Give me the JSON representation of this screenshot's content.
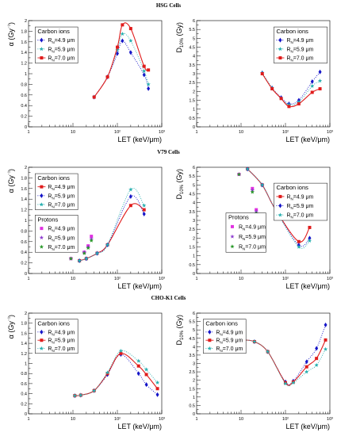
{
  "row_titles": [
    "HSG Cells",
    "V79 Cells",
    "CHO-K1 Cells"
  ],
  "colors": {
    "r49": "#1515c8",
    "r59": "#2ab0b0",
    "r70": "#e01c1c",
    "p49": "#e030e0",
    "p59": "#9040d0",
    "p70": "#2a9a2a"
  },
  "chart_data": [
    {
      "type": "scatter",
      "row": "HSG Cells",
      "panel": "left",
      "ykind": "alpha",
      "xlabel": "LET (keV/μm)",
      "ylabel": "α (Gy⁻¹)",
      "xscale": "log",
      "xlim": [
        1,
        1000
      ],
      "ylim": [
        0,
        2
      ],
      "xticks": [
        "1",
        "10",
        "10²",
        "10³"
      ],
      "yticks": [
        "0",
        "0.2",
        "0.4",
        "0.6",
        "0.8",
        "1",
        "1.2",
        "1.4",
        "1.6",
        "1.8",
        "2"
      ],
      "legend_title": "Carbon ions",
      "legend_position": "top-left",
      "legend_box": [
        0.05,
        0.6,
        0.37,
        0.94
      ],
      "series": [
        {
          "name": "4.9 μm",
          "group": "carbon",
          "key": "r49",
          "marker": "diamond",
          "line": "dotted",
          "x": [
            30,
            60,
            100,
            130,
            200,
            400,
            500
          ],
          "y": [
            0.56,
            0.94,
            1.38,
            1.62,
            1.4,
            0.98,
            0.72
          ]
        },
        {
          "name": "5.9 μm",
          "group": "carbon",
          "key": "r59",
          "marker": "star",
          "line": "dotted",
          "x": [
            30,
            60,
            100,
            130,
            200,
            400,
            500
          ],
          "y": [
            0.56,
            0.94,
            1.45,
            1.75,
            1.62,
            1.05,
            0.8
          ]
        },
        {
          "name": "7.0 μm",
          "group": "carbon",
          "key": "r70",
          "marker": "square",
          "line": "solid",
          "x": [
            30,
            60,
            100,
            130,
            200,
            400,
            500
          ],
          "y": [
            0.56,
            0.94,
            1.5,
            1.92,
            1.85,
            1.14,
            1.07
          ]
        }
      ]
    },
    {
      "type": "scatter",
      "row": "HSG Cells",
      "panel": "right",
      "ykind": "d10",
      "xlabel": "LET (keV/μm)",
      "ylabel": "D10% (Gy)",
      "xscale": "log",
      "xlim": [
        1,
        1000
      ],
      "ylim": [
        0,
        6
      ],
      "xticks": [
        "1",
        "10",
        "10²",
        "10³"
      ],
      "yticks": [
        "0",
        "0.5",
        "1",
        "1.5",
        "2",
        "2.5",
        "3",
        "3.5",
        "4",
        "4.5",
        "5",
        "5.5",
        "6"
      ],
      "legend_title": "Carbon ions",
      "legend_position": "top-right",
      "legend_box": [
        0.58,
        0.6,
        0.98,
        0.94
      ],
      "series": [
        {
          "name": "4.9 μm",
          "group": "carbon",
          "key": "r49",
          "marker": "diamond",
          "line": "dotted",
          "x": [
            30,
            50,
            80,
            120,
            200,
            400,
            600
          ],
          "y": [
            3.05,
            2.2,
            1.65,
            1.3,
            1.5,
            2.55,
            3.1
          ]
        },
        {
          "name": "5.9 μm",
          "group": "carbon",
          "key": "r59",
          "marker": "star",
          "line": "dotted",
          "x": [
            30,
            50,
            80,
            120,
            200,
            400,
            600
          ],
          "y": [
            3.05,
            2.2,
            1.6,
            1.25,
            1.4,
            2.3,
            2.6
          ]
        },
        {
          "name": "7.0 μm",
          "group": "carbon",
          "key": "r70",
          "marker": "square",
          "line": "solid",
          "x": [
            30,
            50,
            80,
            120,
            200,
            400,
            600
          ],
          "y": [
            3.0,
            2.15,
            1.6,
            1.15,
            1.3,
            1.95,
            2.15
          ]
        }
      ]
    },
    {
      "type": "scatter",
      "row": "V79 Cells",
      "panel": "left",
      "ykind": "alpha",
      "xlabel": "LET (keV/μm)",
      "ylabel": "α (Gy⁻¹)",
      "xscale": "log",
      "xlim": [
        1,
        1000
      ],
      "ylim": [
        0,
        2
      ],
      "xticks": [
        "1",
        "10",
        "10²",
        "10³"
      ],
      "yticks": [
        "0",
        "0.2",
        "0.4",
        "0.6",
        "0.8",
        "1",
        "1.2",
        "1.4",
        "1.6",
        "1.8",
        "2"
      ],
      "legend_title": "Carbon ions",
      "legend_position": "top-left",
      "legend_box": [
        0.05,
        0.6,
        0.37,
        0.94
      ],
      "legend2_title": "Protons",
      "legend2_box": [
        0.05,
        0.2,
        0.37,
        0.55
      ],
      "series": [
        {
          "name": "4.9 μm",
          "group": "carbon",
          "key": "r70",
          "marker": "square",
          "line": "solid",
          "x": [
            14,
            20,
            35,
            60,
            200,
            400
          ],
          "y": [
            0.24,
            0.28,
            0.38,
            0.54,
            1.28,
            1.2
          ]
        },
        {
          "name": "5.9 μm",
          "group": "carbon",
          "key": "r49",
          "marker": "diamond",
          "line": "dotted",
          "x": [
            14,
            20,
            35,
            60,
            200,
            400
          ],
          "y": [
            0.24,
            0.28,
            0.38,
            0.54,
            1.45,
            1.12
          ]
        },
        {
          "name": "7.0 μm",
          "group": "carbon",
          "key": "r59",
          "marker": "star",
          "line": "dotted",
          "x": [
            14,
            20,
            35,
            60,
            200,
            400
          ],
          "y": [
            0.24,
            0.28,
            0.38,
            0.54,
            1.58,
            1.28
          ]
        },
        {
          "name": "4.9 μm",
          "group": "protons",
          "key": "p49",
          "marker": "square",
          "line": "none",
          "x": [
            9,
            18,
            22,
            26
          ],
          "y": [
            0.28,
            0.4,
            0.52,
            0.7
          ]
        },
        {
          "name": "5.9 μm",
          "group": "protons",
          "key": "p59",
          "marker": "star",
          "line": "none",
          "x": [
            9,
            18,
            22,
            26
          ],
          "y": [
            0.28,
            0.4,
            0.5,
            0.65
          ]
        },
        {
          "name": "7.0 μm",
          "group": "protons",
          "key": "p70",
          "marker": "star",
          "line": "none",
          "x": [
            9,
            18,
            22,
            26
          ],
          "y": [
            0.28,
            0.38,
            0.48,
            0.62
          ]
        }
      ]
    },
    {
      "type": "scatter",
      "row": "V79 Cells",
      "panel": "right",
      "ykind": "d10",
      "xlabel": "LET (keV/μm)",
      "ylabel": "D10% (Gy)",
      "xscale": "log",
      "xlim": [
        1,
        1000
      ],
      "ylim": [
        0,
        6
      ],
      "xticks": [
        "1",
        "10",
        "10²",
        "10³"
      ],
      "yticks": [
        "0",
        "0.5",
        "1",
        "1.5",
        "2",
        "2.5",
        "3",
        "3.5",
        "4",
        "4.5",
        "5",
        "5.5",
        "6"
      ],
      "legend_title": "Carbon ions",
      "legend_position": "top-right",
      "legend_box": [
        0.58,
        0.5,
        0.98,
        0.85
      ],
      "legend2_title": "Protons",
      "legend2_box": [
        0.22,
        0.2,
        0.52,
        0.57
      ],
      "series": [
        {
          "name": "4.9 μm",
          "group": "carbon",
          "key": "r70",
          "marker": "square",
          "line": "solid",
          "x": [
            14,
            30,
            60,
            200,
            350
          ],
          "y": [
            5.9,
            5.0,
            3.6,
            1.8,
            2.6
          ]
        },
        {
          "name": "5.9 μm",
          "group": "carbon",
          "key": "r49",
          "marker": "diamond",
          "line": "dotted",
          "x": [
            14,
            30,
            60,
            200,
            350
          ],
          "y": [
            5.9,
            5.0,
            3.6,
            1.6,
            2.0
          ]
        },
        {
          "name": "7.0 μm",
          "group": "carbon",
          "key": "r59",
          "marker": "star",
          "line": "dotted",
          "x": [
            14,
            30,
            60,
            200,
            350
          ],
          "y": [
            5.9,
            5.0,
            3.6,
            1.5,
            1.85
          ]
        },
        {
          "name": "4.9 μm",
          "group": "protons",
          "key": "p49",
          "marker": "square",
          "line": "none",
          "x": [
            9,
            18,
            22,
            26
          ],
          "y": [
            5.6,
            4.8,
            3.6,
            3.0
          ]
        },
        {
          "name": "5.9 μm",
          "group": "protons",
          "key": "p59",
          "marker": "star",
          "line": "none",
          "x": [
            9,
            18,
            22,
            26
          ],
          "y": [
            5.6,
            4.7,
            3.5,
            2.9
          ]
        },
        {
          "name": "7.0 μm",
          "group": "protons",
          "key": "p70",
          "marker": "star",
          "line": "none",
          "x": [
            9,
            18,
            22,
            26
          ],
          "y": [
            5.6,
            4.6,
            3.4,
            2.8
          ]
        }
      ]
    },
    {
      "type": "scatter",
      "row": "CHO-K1 Cells",
      "panel": "left",
      "ykind": "alpha",
      "xlabel": "LET (keV/μm)",
      "ylabel": "α (Gy⁻¹)",
      "xscale": "log",
      "xlim": [
        1,
        1000
      ],
      "ylim": [
        0,
        2
      ],
      "xticks": [
        "1",
        "10",
        "10²",
        "10³"
      ],
      "yticks": [
        "0",
        "0.2",
        "0.4",
        "0.6",
        "0.8",
        "1",
        "1.2",
        "1.4",
        "1.6",
        "1.8",
        "2"
      ],
      "legend_title": "Carbon ions",
      "legend_position": "top-left",
      "legend_box": [
        0.05,
        0.6,
        0.37,
        0.94
      ],
      "series": [
        {
          "name": "4.9 μm",
          "group": "carbon",
          "key": "r49",
          "marker": "diamond",
          "line": "dotted",
          "x": [
            11,
            15,
            30,
            60,
            120,
            300,
            450,
            800
          ],
          "y": [
            0.36,
            0.37,
            0.46,
            0.78,
            1.18,
            0.8,
            0.58,
            0.38
          ]
        },
        {
          "name": "5.9 μm",
          "group": "carbon",
          "key": "r70",
          "marker": "square",
          "line": "solid",
          "x": [
            11,
            15,
            30,
            60,
            120,
            300,
            450,
            800
          ],
          "y": [
            0.36,
            0.37,
            0.46,
            0.8,
            1.2,
            0.95,
            0.78,
            0.5
          ]
        },
        {
          "name": "7.0 μm",
          "group": "carbon",
          "key": "r59",
          "marker": "star",
          "line": "dotted",
          "x": [
            11,
            15,
            30,
            60,
            120,
            300,
            450,
            800
          ],
          "y": [
            0.36,
            0.37,
            0.46,
            0.82,
            1.25,
            1.05,
            0.88,
            0.62
          ]
        }
      ]
    },
    {
      "type": "scatter",
      "row": "CHO-K1 Cells",
      "panel": "right",
      "ykind": "d10",
      "xlabel": "LET (keV/μm)",
      "ylabel": "D10% (Gy)",
      "xscale": "log",
      "xlim": [
        1,
        1000
      ],
      "ylim": [
        0,
        6
      ],
      "xticks": [
        "1",
        "10",
        "10²",
        "10³"
      ],
      "yticks": [
        "0",
        "0.5",
        "1",
        "1.5",
        "2",
        "2.5",
        "3",
        "3.5",
        "4",
        "4.5",
        "5",
        "5.5",
        "6"
      ],
      "legend_title": "Carbon ions",
      "legend_position": "top-right",
      "legend_box": [
        0.05,
        0.6,
        0.37,
        0.94
      ],
      "series": [
        {
          "name": "4.9 μm",
          "group": "carbon",
          "key": "r49",
          "marker": "diamond",
          "line": "dotted",
          "x": [
            11,
            20,
            40,
            100,
            150,
            300,
            500,
            800
          ],
          "y": [
            4.4,
            4.3,
            3.7,
            1.9,
            1.95,
            3.1,
            3.9,
            5.3
          ]
        },
        {
          "name": "5.9 μm",
          "group": "carbon",
          "key": "r70",
          "marker": "square",
          "line": "solid",
          "x": [
            11,
            20,
            40,
            100,
            150,
            300,
            500,
            800
          ],
          "y": [
            4.4,
            4.3,
            3.7,
            1.85,
            1.9,
            2.8,
            3.3,
            4.4
          ]
        },
        {
          "name": "7.0 μm",
          "group": "carbon",
          "key": "r59",
          "marker": "star",
          "line": "dotted",
          "x": [
            11,
            20,
            40,
            100,
            150,
            300,
            500,
            800
          ],
          "y": [
            4.4,
            4.3,
            3.7,
            1.8,
            1.85,
            2.5,
            2.9,
            3.85
          ]
        }
      ]
    }
  ]
}
